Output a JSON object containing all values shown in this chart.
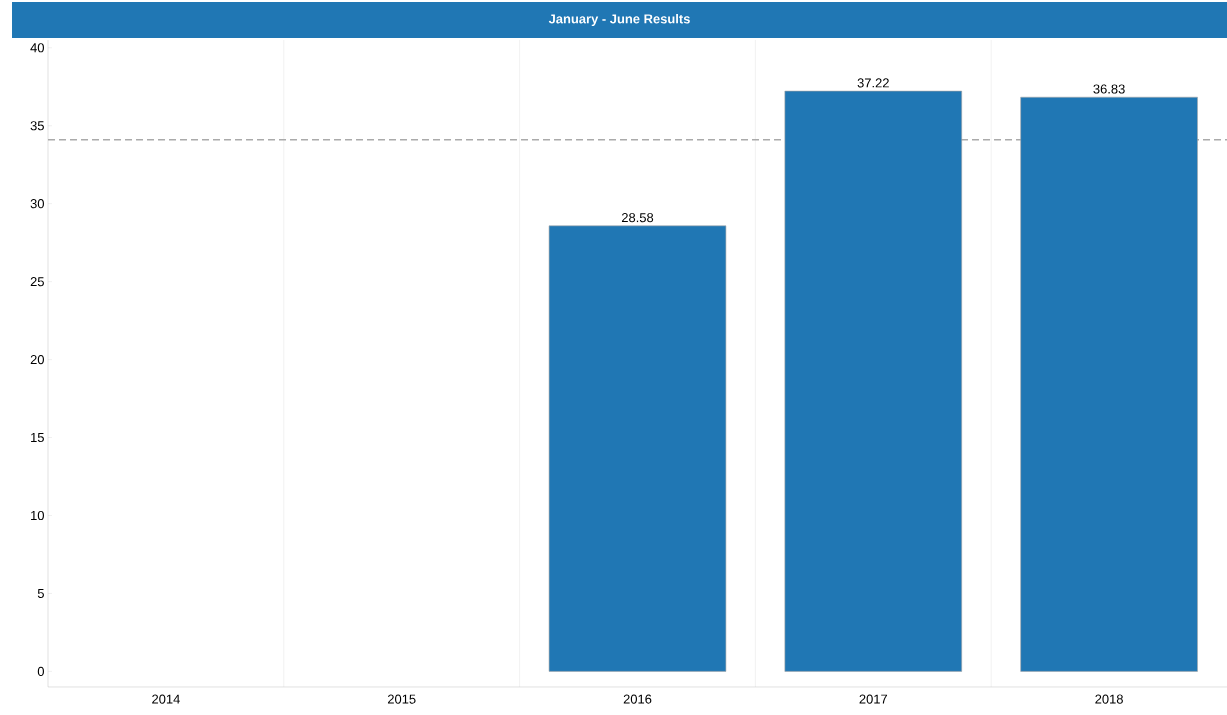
{
  "chart_data": {
    "type": "bar",
    "title": "January - June Results",
    "categories": [
      "2014",
      "2015",
      "2016",
      "2017",
      "2018"
    ],
    "values": [
      null,
      null,
      28.58,
      37.22,
      36.83
    ],
    "color": "#2077b4",
    "ylim": [
      -1,
      40.5
    ],
    "yticks": [
      0,
      5,
      10,
      15,
      20,
      25,
      30,
      35,
      40
    ],
    "grid": "x",
    "data_labels": true,
    "ref_lines": [
      {
        "axis": "y",
        "value": 34.1,
        "color": "#aaaaaa",
        "line_style": "dashed"
      }
    ]
  }
}
